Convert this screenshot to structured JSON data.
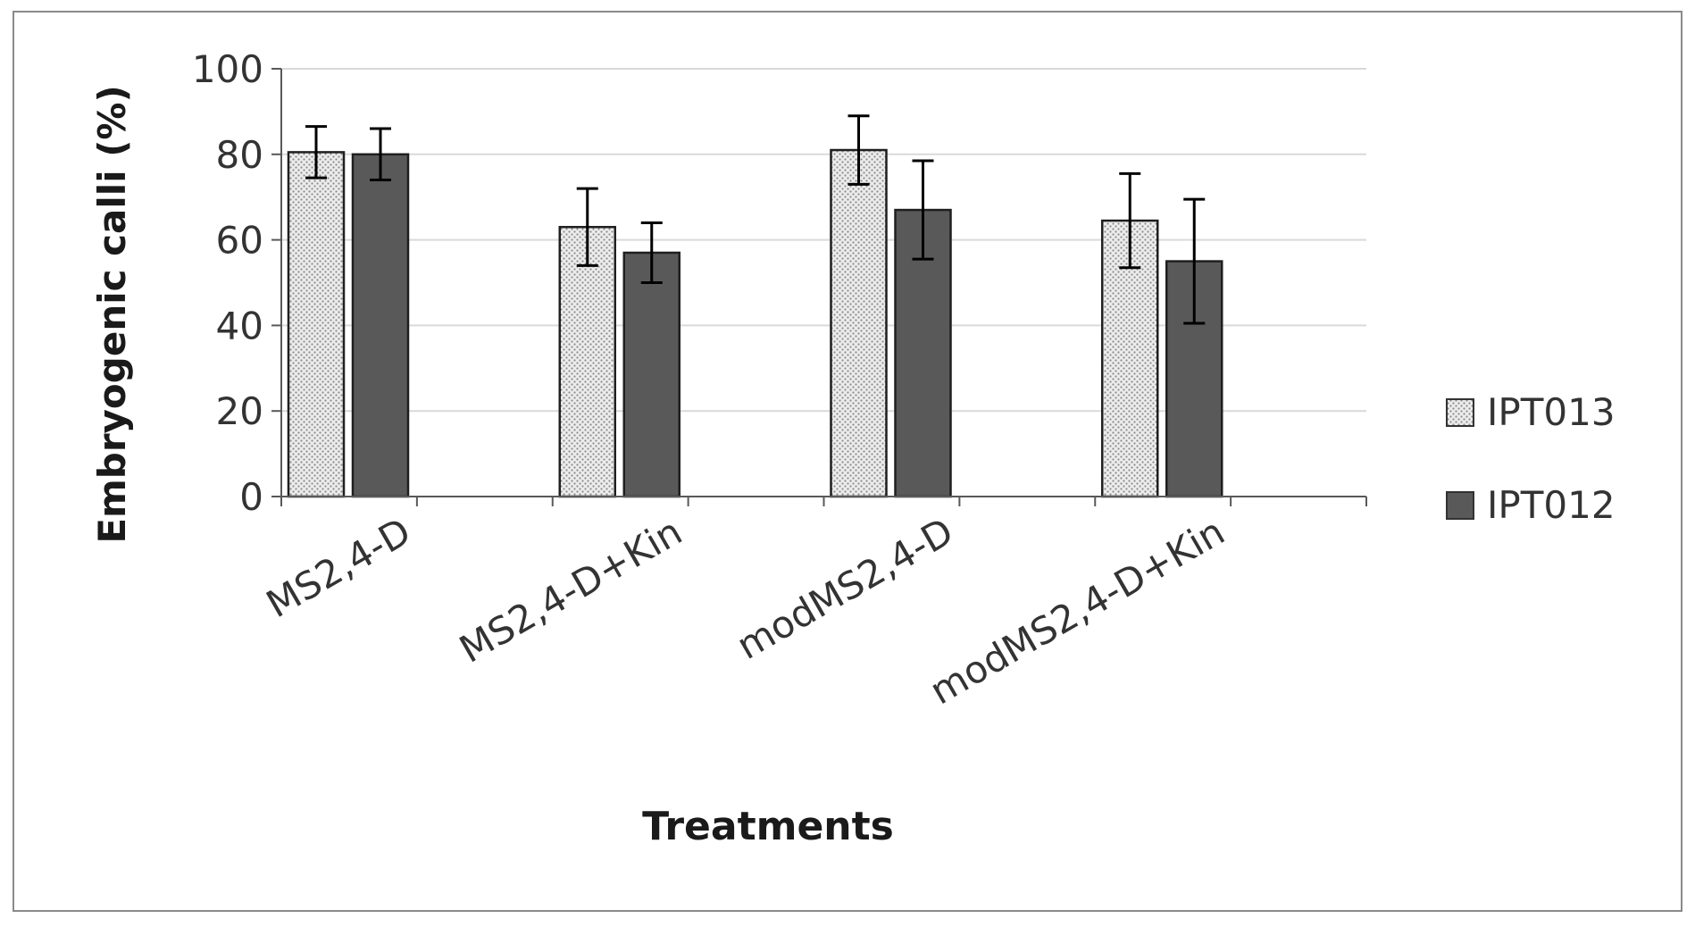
{
  "chart_data": {
    "type": "bar",
    "title": "",
    "xlabel": "Treatments",
    "ylabel": "Embryogenic calli (%)",
    "ylim": [
      0,
      100
    ],
    "yticks": [
      0,
      20,
      40,
      60,
      80,
      100
    ],
    "grid": true,
    "legend_position": "right",
    "categories": [
      "MS2,4-D",
      "MS2,4-D+Kin",
      "modMS2,4-D",
      "modMS2,4-D+Kin"
    ],
    "series": [
      {
        "name": "IPT013",
        "pattern": "dotted",
        "color": "#f2f2f2",
        "values": [
          80.5,
          63,
          81,
          64.5
        ],
        "error": [
          6,
          9,
          8,
          11
        ]
      },
      {
        "name": "IPT012",
        "pattern": "solid",
        "color": "#595959",
        "values": [
          80,
          57,
          67,
          55
        ],
        "error": [
          6,
          7,
          11.5,
          14.5
        ]
      }
    ]
  }
}
